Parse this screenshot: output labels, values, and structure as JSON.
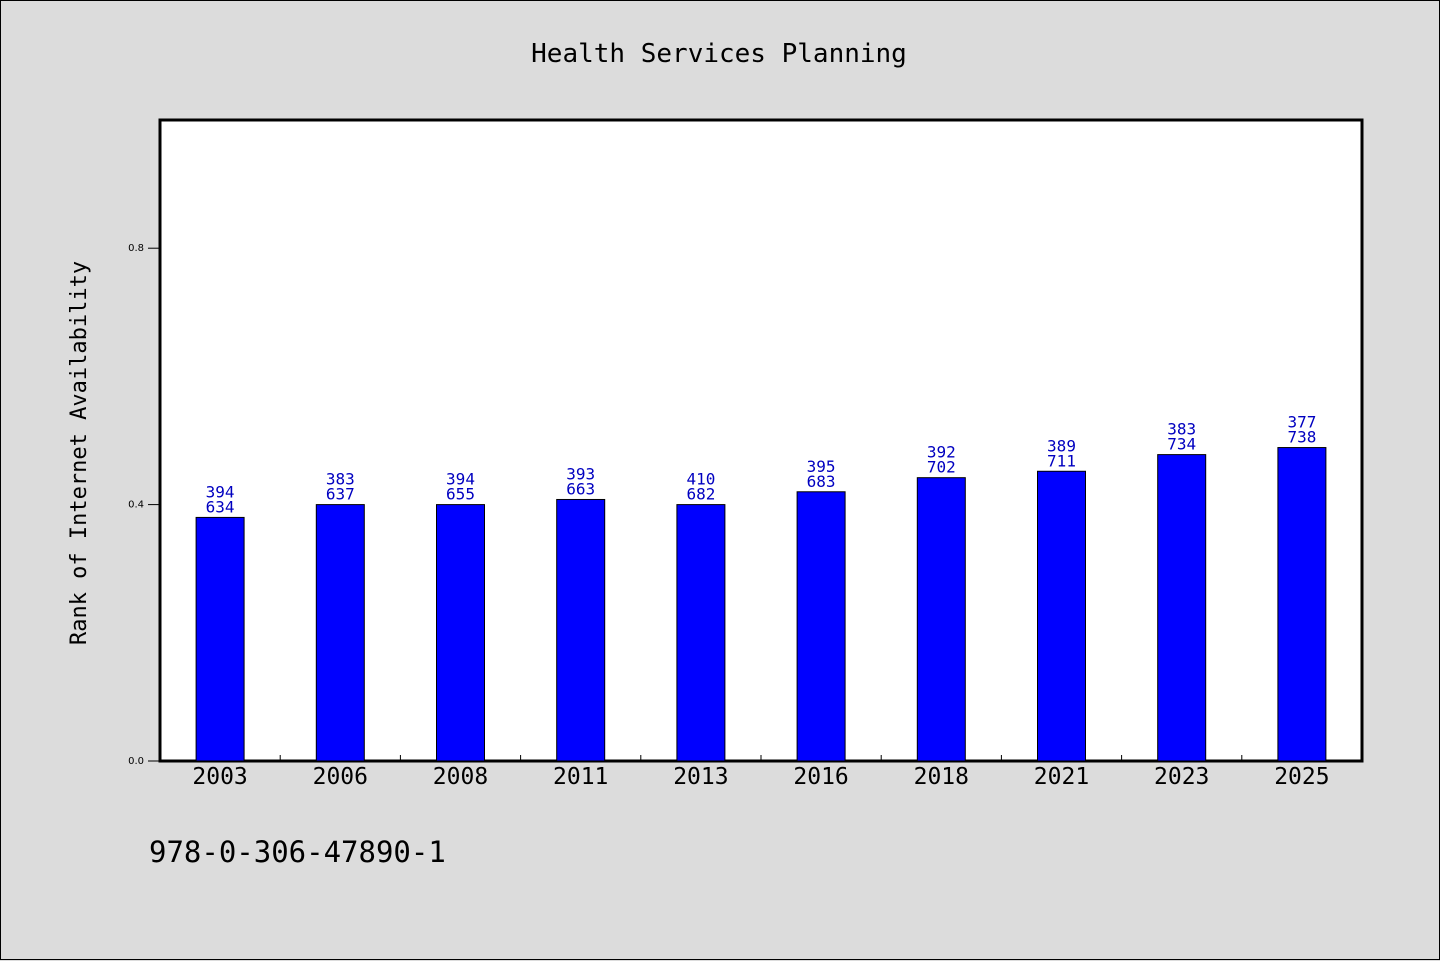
{
  "footer": {
    "isbn": "978-0-306-47890-1"
  },
  "colors": {
    "bar": "#0000ff",
    "label": "#0000c0",
    "plot_bg": "#ffffff",
    "page_bg": "#dcdcdc"
  },
  "chart_data": {
    "type": "bar",
    "title": "Health Services Planning",
    "xlabel": "",
    "ylabel": "Rank of Internet Availability",
    "categories": [
      "2003",
      "2006",
      "2008",
      "2011",
      "2013",
      "2016",
      "2018",
      "2021",
      "2023",
      "2025"
    ],
    "values": [
      0.38,
      0.4,
      0.4,
      0.408,
      0.4,
      0.42,
      0.442,
      0.452,
      0.478,
      0.489
    ],
    "data_labels": [
      [
        "394",
        "634"
      ],
      [
        "383",
        "637"
      ],
      [
        "394",
        "655"
      ],
      [
        "393",
        "663"
      ],
      [
        "410",
        "682"
      ],
      [
        "395",
        "683"
      ],
      [
        "392",
        "702"
      ],
      [
        "389",
        "711"
      ],
      [
        "383",
        "734"
      ],
      [
        "377",
        "738"
      ]
    ],
    "ylim": [
      0,
      1.0
    ],
    "yticks": [
      0.0,
      0.4,
      0.8
    ],
    "ytick_labels": [
      "0.0",
      "0.4",
      "0.8"
    ],
    "grid": false,
    "legend": "none"
  }
}
